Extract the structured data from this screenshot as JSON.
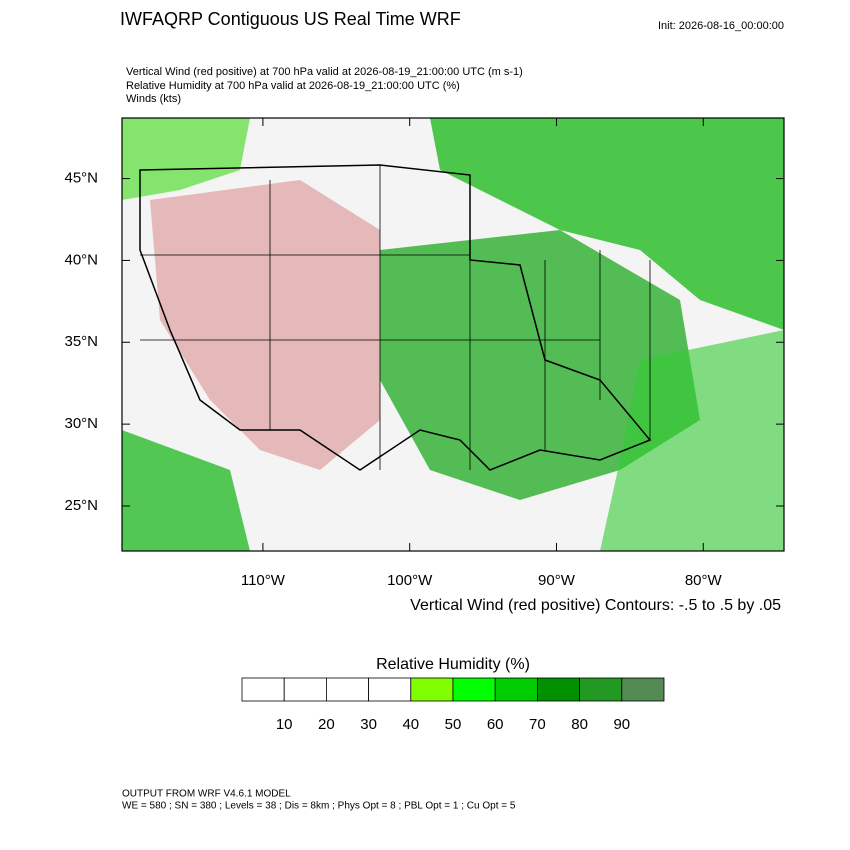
{
  "header": {
    "title": "IWFAQRP Contiguous US Real Time WRF",
    "init": "Init: 2026-08-16_00:00:00"
  },
  "fields": [
    "Vertical Wind (red positive) at 700 hPa valid at 2026-08-19_21:00:00 UTC   (m s-1)",
    "Relative Humidity at 700 hPa valid at 2026-08-19_21:00:00 UTC   (%)",
    "Winds   (kts)"
  ],
  "map": {
    "xlim": [
      -119.6,
      -74.5
    ],
    "ylim": [
      22.25,
      48.7
    ],
    "xticks": [
      {
        "value": -110,
        "label": "110°W"
      },
      {
        "value": -100,
        "label": "100°W"
      },
      {
        "value": -90,
        "label": "90°W"
      },
      {
        "value": -80,
        "label": "80°W"
      }
    ],
    "yticks": [
      {
        "value": 25,
        "label": "25°N"
      },
      {
        "value": 30,
        "label": "30°N"
      },
      {
        "value": 35,
        "label": "35°N"
      },
      {
        "value": 40,
        "label": "40°N"
      },
      {
        "value": 45,
        "label": "45°N"
      }
    ],
    "contour_note": "Vertical Wind (red positive) Contours: -.5 to .5 by .05"
  },
  "colorbar": {
    "title": "Relative Humidity  (%)",
    "levels": [
      10,
      20,
      30,
      40,
      50,
      60,
      70,
      80,
      90
    ],
    "colors": [
      "#ffffff",
      "#ffffff",
      "#ffffff",
      "#ffffff",
      "#80ff00",
      "#00ff00",
      "#00cc00",
      "#009000",
      "#229922",
      "#548b54"
    ]
  },
  "footer": [
    "OUTPUT FROM WRF V4.6.1 MODEL",
    "WE = 580 ; SN = 380 ; Levels = 38 ; Dis = 8km ; Phys Opt = 8 ; PBL Opt = 1 ; Cu Opt = 5"
  ]
}
